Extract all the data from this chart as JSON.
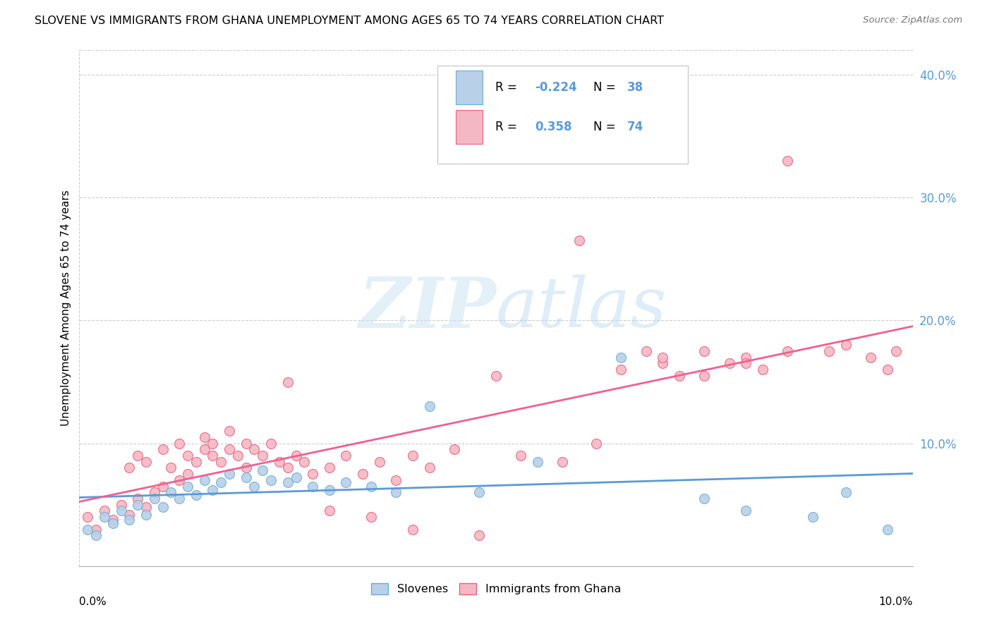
{
  "title": "SLOVENE VS IMMIGRANTS FROM GHANA UNEMPLOYMENT AMONG AGES 65 TO 74 YEARS CORRELATION CHART",
  "source": "Source: ZipAtlas.com",
  "ylabel": "Unemployment Among Ages 65 to 74 years",
  "legend_bottom": [
    "Slovenes",
    "Immigrants from Ghana"
  ],
  "R_slovene": "-0.224",
  "N_slovene": "38",
  "R_ghana": "0.358",
  "N_ghana": "74",
  "xlim": [
    0.0,
    0.1
  ],
  "ylim": [
    0.0,
    0.42
  ],
  "yticks": [
    0.0,
    0.1,
    0.2,
    0.3,
    0.4
  ],
  "ytick_labels": [
    "",
    "10.0%",
    "20.0%",
    "30.0%",
    "40.0%"
  ],
  "color_slovene_fill": "#b8d0e8",
  "color_slovene_edge": "#6aaed6",
  "color_ghana_fill": "#f4b8c4",
  "color_ghana_edge": "#e86080",
  "color_slovene_line": "#5b9bd5",
  "color_ghana_line": "#f06090",
  "background_color": "#ffffff",
  "watermark": "ZIPatlas",
  "slovene_x": [
    0.001,
    0.002,
    0.003,
    0.004,
    0.005,
    0.006,
    0.007,
    0.008,
    0.009,
    0.01,
    0.011,
    0.012,
    0.013,
    0.014,
    0.015,
    0.016,
    0.017,
    0.018,
    0.02,
    0.021,
    0.022,
    0.023,
    0.025,
    0.026,
    0.028,
    0.03,
    0.032,
    0.035,
    0.038,
    0.042,
    0.048,
    0.055,
    0.065,
    0.075,
    0.08,
    0.088,
    0.092,
    0.097
  ],
  "slovene_y": [
    0.03,
    0.025,
    0.04,
    0.035,
    0.045,
    0.038,
    0.05,
    0.042,
    0.055,
    0.048,
    0.06,
    0.055,
    0.065,
    0.058,
    0.07,
    0.062,
    0.068,
    0.075,
    0.072,
    0.065,
    0.078,
    0.07,
    0.068,
    0.072,
    0.065,
    0.062,
    0.068,
    0.065,
    0.06,
    0.13,
    0.06,
    0.085,
    0.17,
    0.055,
    0.045,
    0.04,
    0.06,
    0.03
  ],
  "ghana_x": [
    0.001,
    0.002,
    0.003,
    0.004,
    0.005,
    0.006,
    0.006,
    0.007,
    0.007,
    0.008,
    0.008,
    0.009,
    0.01,
    0.01,
    0.011,
    0.012,
    0.012,
    0.013,
    0.013,
    0.014,
    0.015,
    0.015,
    0.016,
    0.016,
    0.017,
    0.018,
    0.018,
    0.019,
    0.02,
    0.02,
    0.021,
    0.022,
    0.023,
    0.024,
    0.025,
    0.026,
    0.027,
    0.028,
    0.03,
    0.032,
    0.034,
    0.036,
    0.038,
    0.04,
    0.042,
    0.045,
    0.048,
    0.05,
    0.053,
    0.058,
    0.062,
    0.065,
    0.068,
    0.07,
    0.072,
    0.075,
    0.078,
    0.08,
    0.082,
    0.085,
    0.06,
    0.07,
    0.075,
    0.08,
    0.085,
    0.09,
    0.092,
    0.095,
    0.097,
    0.098,
    0.025,
    0.03,
    0.035,
    0.04
  ],
  "ghana_y": [
    0.04,
    0.03,
    0.045,
    0.038,
    0.05,
    0.042,
    0.08,
    0.055,
    0.09,
    0.048,
    0.085,
    0.06,
    0.065,
    0.095,
    0.08,
    0.07,
    0.1,
    0.075,
    0.09,
    0.085,
    0.095,
    0.105,
    0.09,
    0.1,
    0.085,
    0.095,
    0.11,
    0.09,
    0.08,
    0.1,
    0.095,
    0.09,
    0.1,
    0.085,
    0.08,
    0.09,
    0.085,
    0.075,
    0.08,
    0.09,
    0.075,
    0.085,
    0.07,
    0.09,
    0.08,
    0.095,
    0.025,
    0.155,
    0.09,
    0.085,
    0.1,
    0.16,
    0.175,
    0.165,
    0.155,
    0.175,
    0.165,
    0.17,
    0.16,
    0.175,
    0.265,
    0.17,
    0.155,
    0.165,
    0.33,
    0.175,
    0.18,
    0.17,
    0.16,
    0.175,
    0.15,
    0.045,
    0.04,
    0.03
  ]
}
